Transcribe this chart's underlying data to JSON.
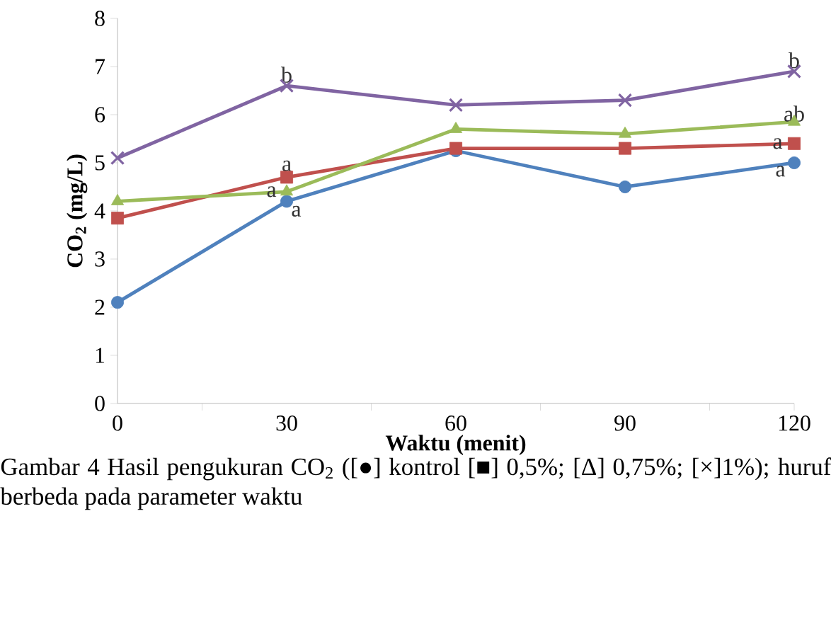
{
  "chart_data": {
    "type": "line",
    "xlabel": "Waktu (menit)",
    "ylabel": "CO$_{2}$ (mg/L)",
    "categories": [
      "0",
      "30",
      "60",
      "90",
      "120"
    ],
    "ylim": [
      0,
      8
    ],
    "yticks": [
      0,
      1,
      2,
      3,
      4,
      5,
      6,
      7,
      8
    ],
    "grid": false,
    "line_style": "solid",
    "series": [
      {
        "color": "#4f81bd",
        "marker": "circle",
        "values": [
          2.1,
          4.2,
          5.25,
          4.5,
          5.0
        ]
      },
      {
        "color": "#c0504d",
        "marker": "square",
        "values": [
          3.85,
          4.7,
          5.3,
          5.3,
          5.4
        ]
      },
      {
        "color": "#9bbb59",
        "marker": "triangle",
        "values": [
          4.2,
          4.4,
          5.7,
          5.6,
          5.85
        ]
      },
      {
        "color": "#8064a2",
        "marker": "cross",
        "values": [
          5.1,
          6.6,
          6.2,
          6.3,
          6.9
        ]
      }
    ],
    "annotations": [
      {
        "text": "b",
        "x": "30",
        "y": 6.6
      },
      {
        "text": "b",
        "x": "120",
        "y": 6.9
      },
      {
        "text": "ab",
        "x": "120",
        "y": 5.85
      },
      {
        "text": "a",
        "x": "120",
        "y": 5.4
      },
      {
        "text": "a",
        "x": "120",
        "y": 5.0
      },
      {
        "text": "a",
        "x": "30",
        "y": 4.7
      },
      {
        "text": "a",
        "x": "30",
        "y": 4.4
      },
      {
        "text": "a",
        "x": "30",
        "y": 4.2
      },
      "Gambar 4 Hasil pengukuran CO$_{2}$ ([●] kontrol [■] 0,5%; [Δ] 0,75%; [×]1%); huruf berbeda pada parameter waktu"
    ]
  }
}
